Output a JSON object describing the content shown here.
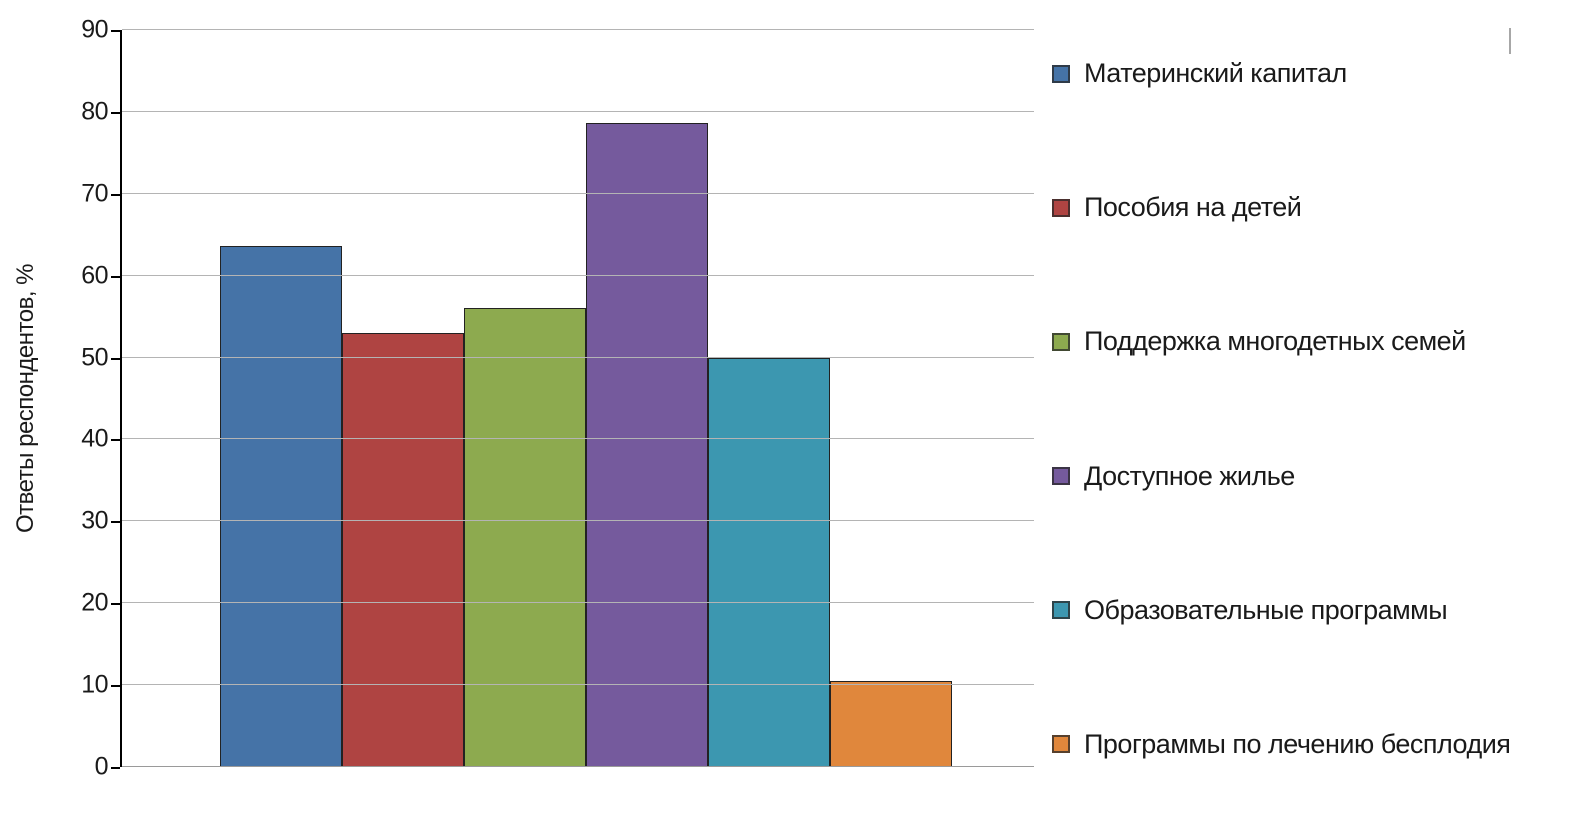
{
  "chart_data": {
    "type": "bar",
    "title": "",
    "xlabel": "",
    "ylabel": "Ответы респондентов, %",
    "ylim": [
      0,
      90
    ],
    "ytick_step": 10,
    "grid": true,
    "legend_position": "right",
    "categories": [
      "Материнский капитал",
      "Пособия на детей",
      "Поддержка многодетных семей",
      "Доступное жилье",
      "Образовательные программы",
      "Программы по лечению бесплодия"
    ],
    "values": [
      63.6,
      53,
      56,
      78.7,
      50,
      10.5
    ],
    "colors": [
      "#4573A7",
      "#AF4442",
      "#8DAA4F",
      "#755A9D",
      "#3C97B0",
      "#E0873C"
    ]
  },
  "axis": {
    "yticks": [
      0,
      10,
      20,
      30,
      40,
      50,
      60,
      70,
      80,
      90
    ]
  },
  "legend": {
    "items": [
      {
        "label": "Материнский капитал",
        "color": "#4573A7"
      },
      {
        "label": "Пособия на детей",
        "color": "#AF4442"
      },
      {
        "label": "Поддержка многодетных семей",
        "color": "#8DAA4F"
      },
      {
        "label": "Доступное жилье",
        "color": "#755A9D"
      },
      {
        "label": "Образовательные программы",
        "color": "#3C97B0"
      },
      {
        "label": "Программы по лечению бесплодия",
        "color": "#E0873C"
      }
    ]
  }
}
